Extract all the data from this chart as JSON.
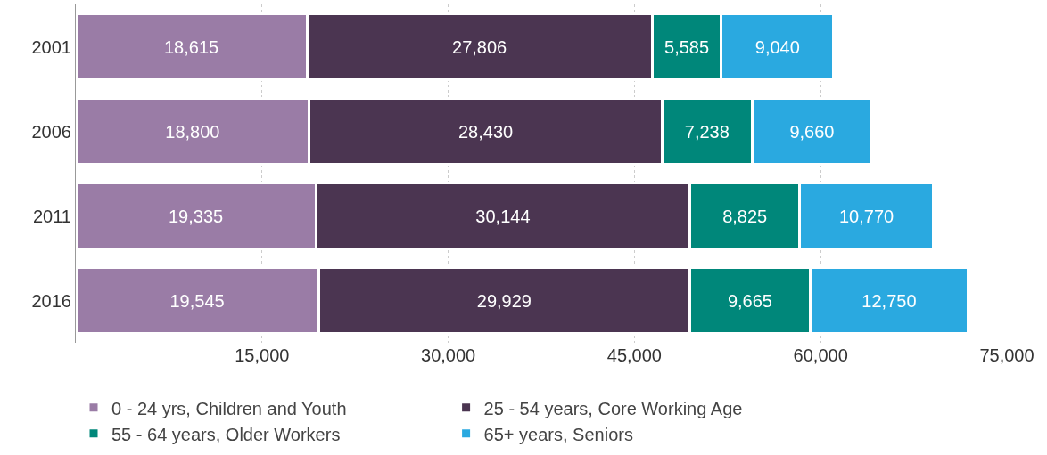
{
  "chart_data": {
    "type": "bar",
    "orientation": "horizontal",
    "stacked": true,
    "grid": "x",
    "legend": "bottom left",
    "categories": [
      "2001",
      "2006",
      "2011",
      "2016"
    ],
    "series": [
      {
        "name": "0 - 24 yrs, Children and Youth",
        "color": "#9a7ca6",
        "values": [
          18615,
          18800,
          19335,
          19545
        ],
        "value_labels": [
          "18,615",
          "18,800",
          "19,335",
          "19,545"
        ]
      },
      {
        "name": "25 - 54 years, Core Working Age",
        "color": "#4b3551",
        "values": [
          27806,
          28430,
          30144,
          29929
        ],
        "value_labels": [
          "27,806",
          "28,430",
          "30,144",
          "29,929"
        ]
      },
      {
        "name": "55 - 64 years, Older Workers",
        "color": "#00877a",
        "values": [
          5585,
          7238,
          8825,
          9665
        ],
        "value_labels": [
          "5,585",
          "7,238",
          "8,825",
          "9,665"
        ]
      },
      {
        "name": "65+ years, Seniors",
        "color": "#2aa9e0",
        "values": [
          9040,
          9660,
          10770,
          12750
        ],
        "value_labels": [
          "9,040",
          "9,660",
          "10,770",
          "12,750"
        ]
      }
    ],
    "xlim": [
      0,
      75000
    ],
    "xticks": [
      {
        "value": 15000,
        "label": "15,000"
      },
      {
        "value": 30000,
        "label": "30,000"
      },
      {
        "value": 45000,
        "label": "45,000"
      },
      {
        "value": 60000,
        "label": "60,000"
      },
      {
        "value": 75000,
        "label": "75,000"
      }
    ]
  }
}
